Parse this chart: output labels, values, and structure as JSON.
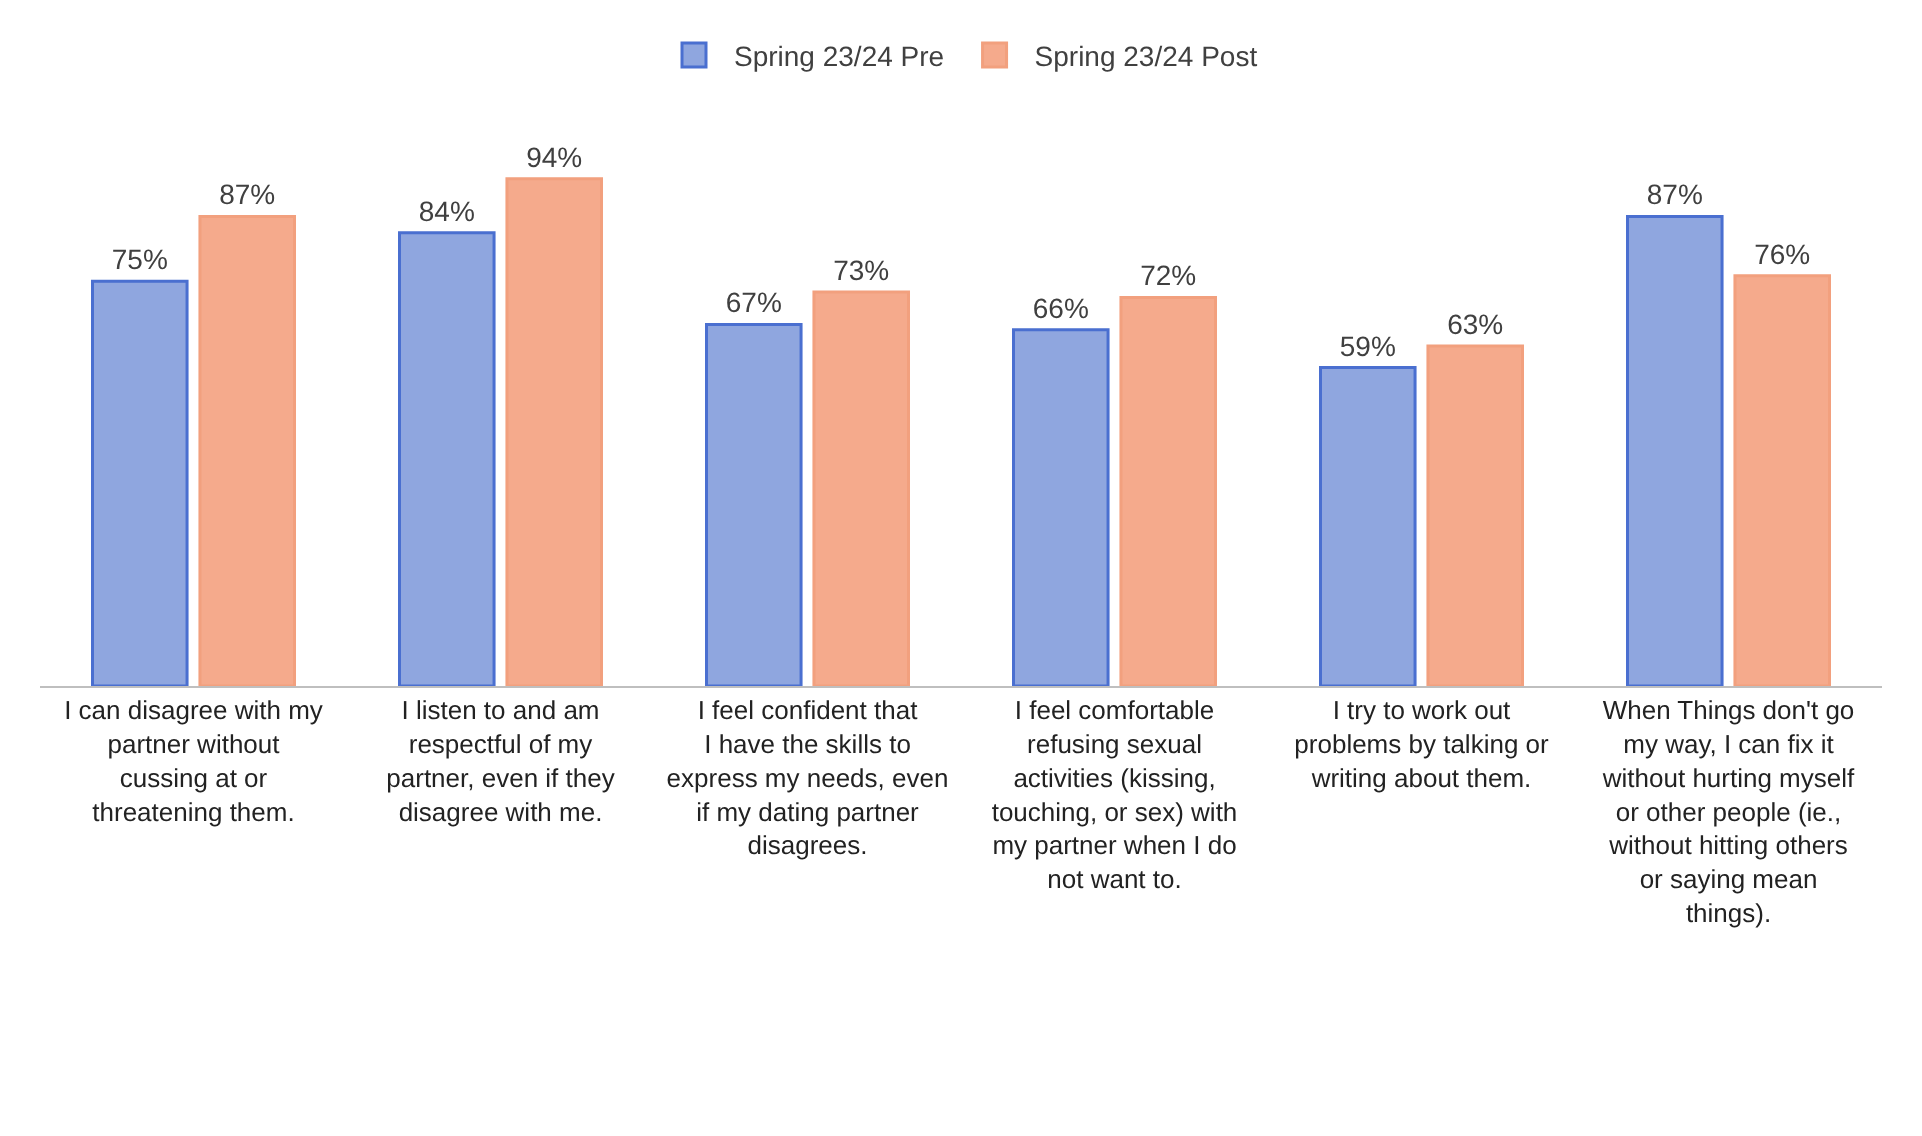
{
  "chart_data": {
    "type": "bar",
    "categories": [
      "I can disagree with my partner without cussing at or threatening them.",
      "I listen to and am respectful of my partner, even if they disagree with me.",
      "I feel confident that I have the skills to express my needs, even if my dating partner disagrees.",
      "I feel comfortable refusing sexual activities (kissing, touching, or sex) with my partner when I do not want to.",
      "I try to work out problems by talking or writing about them.",
      "When Things don't go my way, I can fix it without hurting myself or other people (ie., without hitting others or saying mean things)."
    ],
    "series": [
      {
        "name": "Spring 23/24 Pre",
        "color": "#8fa6df",
        "values": [
          75,
          84,
          67,
          66,
          59,
          87
        ],
        "value_labels": [
          "75%",
          "84%",
          "67%",
          "66%",
          "59%",
          "87%"
        ]
      },
      {
        "name": "Spring 23/24 Post",
        "color": "#f5aa8c",
        "values": [
          87,
          94,
          73,
          72,
          63,
          76
        ],
        "value_labels": [
          "87%",
          "94%",
          "73%",
          "72%",
          "63%",
          "76%"
        ]
      }
    ],
    "legend": "top"
  }
}
